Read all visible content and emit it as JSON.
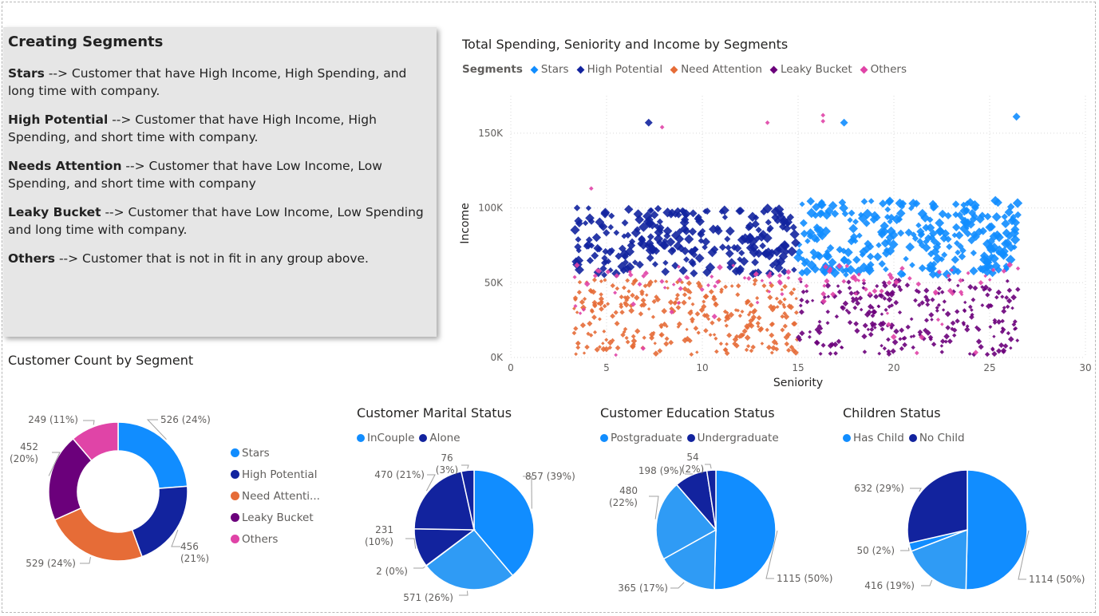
{
  "textbox": {
    "title": "Creating Segments",
    "items": [
      {
        "term": "Stars",
        "desc": " --> Customer that have High Income, High Spending, and long time with company."
      },
      {
        "term": "High Potential",
        "desc": " --> Customer that have High Income, High Spending, and short time with company."
      },
      {
        "term": "Needs Attention",
        "desc": " --> Customer that have Low Income, Low Spending, and short time with company"
      },
      {
        "term": "Leaky Bucket",
        "desc": " --> Customer that have Low Income, Low Spending and long time with company."
      },
      {
        "term": "Others",
        "desc": " --> Customer that is not in fit in any group above."
      }
    ]
  },
  "colors": {
    "stars": "#118dff",
    "high_potential": "#12239e",
    "need_attention": "#e66c37",
    "leaky_bucket": "#6b007b",
    "others": "#e044a7",
    "pie_light": "#118dff",
    "pie_mid": "#2f9bf5",
    "pie_dark": "#12239e"
  },
  "chart_data": [
    {
      "type": "scatter",
      "title": "Total Spending, Seniority and Income by Segments",
      "legend_title": "Segments",
      "legend": [
        "Stars",
        "High Potential",
        "Need Attention",
        "Leaky Bucket",
        "Others"
      ],
      "xlabel": "Seniority",
      "ylabel": "Income",
      "xlim": [
        0,
        30
      ],
      "ylim": [
        0,
        175000
      ],
      "x_ticks": [
        "0",
        "5",
        "10",
        "15",
        "20",
        "25",
        "30"
      ],
      "y_ticks": [
        "0K",
        "50K",
        "100K",
        "150K"
      ],
      "series": [
        {
          "name": "Stars",
          "x_range": [
            15,
            26.5
          ],
          "y_range": [
            55000,
            105000
          ],
          "count": 526
        },
        {
          "name": "High Potential",
          "x_range": [
            3.3,
            15
          ],
          "y_range": [
            55000,
            100000
          ],
          "count": 456
        },
        {
          "name": "Need Attention",
          "x_range": [
            3.3,
            15
          ],
          "y_range": [
            2000,
            52000
          ],
          "count": 529
        },
        {
          "name": "Leaky Bucket",
          "x_range": [
            15,
            26.5
          ],
          "y_range": [
            2000,
            52000
          ],
          "count": 452
        },
        {
          "name": "Others",
          "x_range": [
            3.3,
            26.5
          ],
          "y_range": [
            0,
            60000
          ],
          "count": 249
        }
      ],
      "outliers": [
        {
          "segment": "High Potential",
          "x": 7.2,
          "y": 157000
        },
        {
          "segment": "Others",
          "x": 7.9,
          "y": 154000
        },
        {
          "segment": "Others",
          "x": 13.4,
          "y": 157000
        },
        {
          "segment": "Others",
          "x": 16.3,
          "y": 162000
        },
        {
          "segment": "Others",
          "x": 16.3,
          "y": 158000
        },
        {
          "segment": "Stars",
          "x": 17.4,
          "y": 157000
        },
        {
          "segment": "Stars",
          "x": 26.4,
          "y": 161000
        },
        {
          "segment": "Others",
          "x": 4.2,
          "y": 113000
        },
        {
          "segment": "Others",
          "x": 21.2,
          "y": 3000
        }
      ]
    },
    {
      "type": "donut",
      "title": "Customer Count by Segment",
      "categories": [
        "Stars",
        "High Potential",
        "Need Attenti...",
        "Leaky Bucket",
        "Others"
      ],
      "values": [
        526,
        456,
        529,
        452,
        249
      ],
      "labels": [
        "526 (24%)",
        "456 (21%)",
        "529 (24%)",
        "452 (20%)",
        "249 (11%)"
      ]
    },
    {
      "type": "pie",
      "title": "Customer Marital Status",
      "legend": [
        "InCouple",
        "Alone"
      ],
      "slices": [
        {
          "group": "InCouple",
          "value": 857,
          "label": "857 (39%)"
        },
        {
          "group": "InCouple",
          "value": 571,
          "label": "571 (26%)"
        },
        {
          "group": "InCouple",
          "value": 2,
          "label": "2 (0%)"
        },
        {
          "group": "Alone",
          "value": 231,
          "label": "231 (10%)"
        },
        {
          "group": "Alone",
          "value": 470,
          "label": "470 (21%)"
        },
        {
          "group": "Alone",
          "value": 76,
          "label": "76 (3%)"
        }
      ]
    },
    {
      "type": "pie",
      "title": "Customer Education Status",
      "legend": [
        "Postgraduate",
        "Undergraduate"
      ],
      "slices": [
        {
          "group": "Postgraduate",
          "value": 1115,
          "label": "1115 (50%)"
        },
        {
          "group": "Postgraduate",
          "value": 365,
          "label": "365 (17%)"
        },
        {
          "group": "Postgraduate",
          "value": 480,
          "label": "480 (22%)"
        },
        {
          "group": "Undergraduate",
          "value": 198,
          "label": "198 (9%)"
        },
        {
          "group": "Undergraduate",
          "value": 54,
          "label": "54 (2%)"
        }
      ]
    },
    {
      "type": "pie",
      "title": "Children Status",
      "legend": [
        "Has Child",
        "No Child"
      ],
      "slices": [
        {
          "group": "Has Child",
          "value": 1114,
          "label": "1114 (50%)"
        },
        {
          "group": "Has Child",
          "value": 416,
          "label": "416 (19%)"
        },
        {
          "group": "Has Child",
          "value": 50,
          "label": "50 (2%)"
        },
        {
          "group": "No Child",
          "value": 632,
          "label": "632 (29%)"
        }
      ]
    }
  ]
}
